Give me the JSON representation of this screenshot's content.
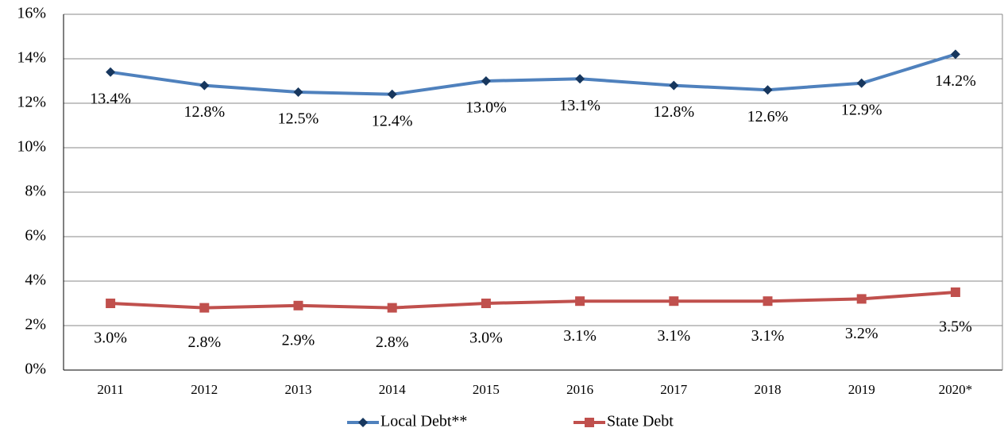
{
  "chart_data": {
    "type": "line",
    "categories": [
      "2011",
      "2012",
      "2013",
      "2014",
      "2015",
      "2016",
      "2017",
      "2018",
      "2019",
      "2020*"
    ],
    "series": [
      {
        "name": "Local Debt**",
        "color": "#4f81bd",
        "marker_color": "#17375e",
        "marker": "diamond",
        "values": [
          13.4,
          12.8,
          12.5,
          12.4,
          13.0,
          13.1,
          12.8,
          12.6,
          12.9,
          14.2
        ],
        "value_labels": [
          "13.4%",
          "12.8%",
          "12.5%",
          "12.4%",
          "13.0%",
          "13.1%",
          "12.8%",
          "12.6%",
          "12.9%",
          "14.2%"
        ]
      },
      {
        "name": "State Debt",
        "color": "#c0504d",
        "marker_color": "#c0504d",
        "marker": "square",
        "values": [
          3.0,
          2.8,
          2.9,
          2.8,
          3.0,
          3.1,
          3.1,
          3.1,
          3.2,
          3.5
        ],
        "value_labels": [
          "3.0%",
          "2.8%",
          "2.9%",
          "2.8%",
          "3.0%",
          "3.1%",
          "3.1%",
          "3.1%",
          "3.2%",
          "3.5%"
        ]
      }
    ],
    "ylim": [
      0,
      16
    ],
    "yticks": [
      {
        "value": 0,
        "label": "0%"
      },
      {
        "value": 2,
        "label": "2%"
      },
      {
        "value": 4,
        "label": "4%"
      },
      {
        "value": 6,
        "label": "6%"
      },
      {
        "value": 8,
        "label": "8%"
      },
      {
        "value": 10,
        "label": "10%"
      },
      {
        "value": 12,
        "label": "12%"
      },
      {
        "value": 14,
        "label": "14%"
      },
      {
        "value": 16,
        "label": "16%"
      }
    ],
    "grid": true,
    "legend": "bottom"
  }
}
